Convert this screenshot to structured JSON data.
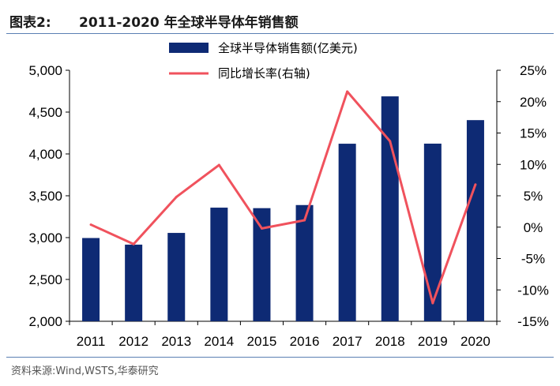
{
  "header": {
    "figure_label": "图表2:",
    "title": "2011-2020 年全球半导体年销售额"
  },
  "source": "资料来源:Wind,WSTS,华泰研究",
  "chart_data": {
    "type": "bar",
    "categories": [
      "2011",
      "2012",
      "2013",
      "2014",
      "2015",
      "2016",
      "2017",
      "2018",
      "2019",
      "2020"
    ],
    "series": [
      {
        "name": "全球半导体销售额(亿美元)",
        "type": "bar",
        "axis": "left",
        "color": "#0e2a74",
        "values": [
          2995,
          2916,
          3056,
          3358,
          3352,
          3389,
          4122,
          4688,
          4123,
          4404
        ]
      },
      {
        "name": "同比增长率(右轴)",
        "type": "line",
        "axis": "right",
        "color": "#f0525d",
        "values": [
          0.4,
          -2.7,
          4.8,
          9.9,
          -0.2,
          1.1,
          21.6,
          13.7,
          -12.1,
          6.8
        ]
      }
    ],
    "left_axis": {
      "min": 2000,
      "max": 5000,
      "step": 500,
      "ticks": [
        "2,000",
        "2,500",
        "3,000",
        "3,500",
        "4,000",
        "4,500",
        "5,000"
      ]
    },
    "right_axis": {
      "min": -15,
      "max": 25,
      "step": 5,
      "ticks": [
        "-15%",
        "-10%",
        "-5%",
        "0%",
        "5%",
        "10%",
        "15%",
        "20%",
        "25%"
      ]
    },
    "legend_position": "top-center",
    "grid": false
  }
}
